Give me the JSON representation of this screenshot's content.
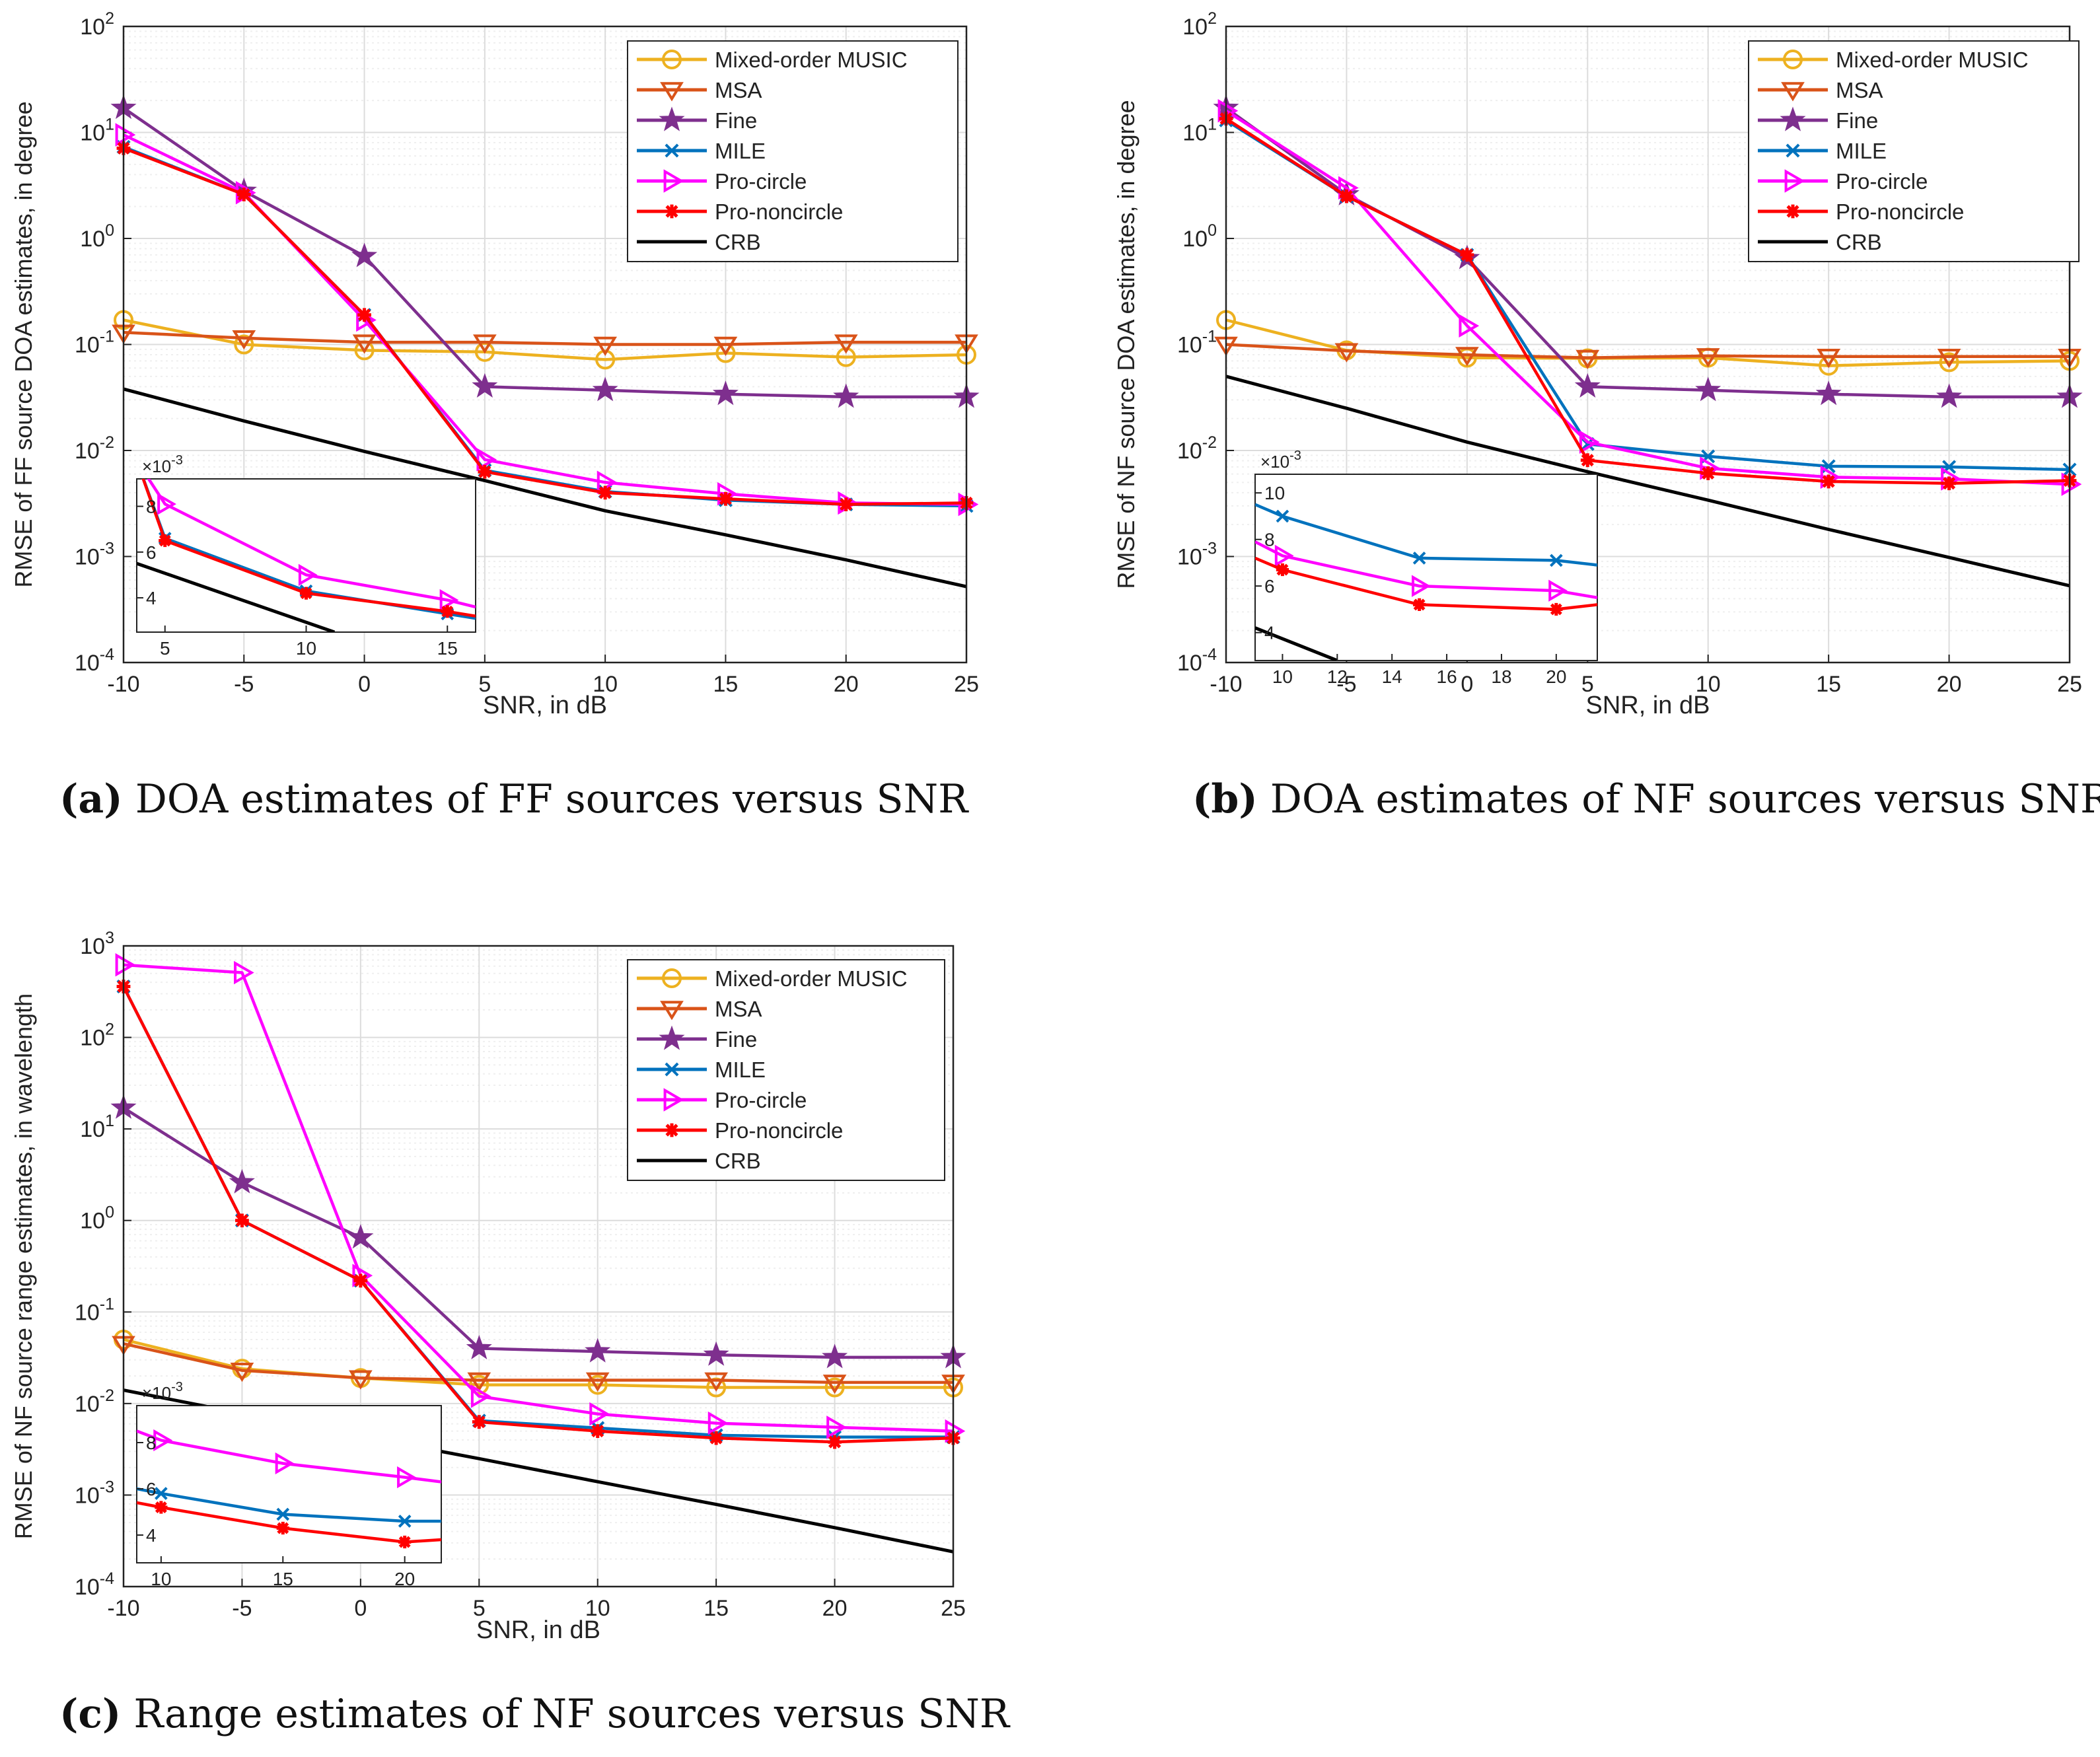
{
  "colors": {
    "mixed": "#EDB120",
    "msa": "#D95319",
    "fine": "#7E2F8E",
    "mile": "#0072BD",
    "procircle": "#FF00FF",
    "pronon": "#FF0000",
    "crb": "#000000",
    "grid": "#dcdcdc",
    "minorgrid": "#efefef"
  },
  "captions": {
    "a": {
      "label": "(a)",
      "text": " DOA estimates of FF sources versus SNR"
    },
    "b": {
      "label": "(b)",
      "text": " DOA estimates of NF sources versus SNR"
    },
    "c": {
      "label": "(c)",
      "text": " Range estimates of NF sources versus SNR"
    }
  },
  "chart_data": [
    {
      "id": "a",
      "type": "line",
      "yscale": "log",
      "xlabel": "SNR, in dB",
      "ylabel": "RMSE of FF source DOA estimates, in degree",
      "xlim": [
        -10,
        25
      ],
      "ylim_exp": [
        -4,
        2
      ],
      "xticks": [
        "-10",
        "-5",
        "0",
        "5",
        "10",
        "15",
        "20",
        "25"
      ],
      "x": [
        -10,
        -5,
        0,
        5,
        10,
        15,
        20,
        25
      ],
      "series": [
        {
          "key": "mixed",
          "name": "Mixed-order MUSIC",
          "marker": "circle",
          "values": [
            0.17,
            0.1,
            0.088,
            0.085,
            0.072,
            0.083,
            0.076,
            0.08
          ]
        },
        {
          "key": "msa",
          "name": "MSA",
          "marker": "tridown",
          "values": [
            0.13,
            0.115,
            0.105,
            0.105,
            0.1,
            0.1,
            0.105,
            0.105
          ]
        },
        {
          "key": "fine",
          "name": "Fine",
          "marker": "star",
          "values": [
            17,
            2.8,
            0.68,
            0.04,
            0.037,
            0.034,
            0.032,
            0.032
          ]
        },
        {
          "key": "mile",
          "name": "MILE",
          "marker": "x",
          "values": [
            7.3,
            2.6,
            0.19,
            0.0065,
            0.0041,
            0.0034,
            0.0031,
            0.003
          ]
        },
        {
          "key": "procircle",
          "name": "Pro-circle",
          "marker": "triright",
          "values": [
            9.5,
            2.7,
            0.17,
            0.0082,
            0.005,
            0.0039,
            0.0032,
            0.0031
          ]
        },
        {
          "key": "pronon",
          "name": "Pro-noncircle",
          "marker": "asterisk",
          "values": [
            7.1,
            2.6,
            0.19,
            0.0063,
            0.004,
            0.0035,
            0.0031,
            0.0032
          ]
        },
        {
          "key": "crb",
          "name": "CRB",
          "marker": "none",
          "values": [
            0.038,
            0.019,
            0.0098,
            0.0052,
            0.0027,
            0.0016,
            0.00093,
            0.00052
          ]
        }
      ],
      "inset": {
        "exponent_label": "×10",
        "exponent_sup": "-3",
        "xlim": [
          4,
          16
        ],
        "ylim": [
          2.5,
          9.2
        ],
        "xticks": [
          "5",
          "10",
          "15"
        ],
        "xtick_values": [
          5,
          10,
          15
        ],
        "yticks": [
          "4",
          "6",
          "8"
        ],
        "ytick_values": [
          4,
          6,
          8
        ],
        "series": [
          {
            "key": "crb",
            "x": [
              4,
              11
            ],
            "values": [
              5.5,
              2.5
            ]
          },
          {
            "key": "mile",
            "x": [
              4,
              5,
              10,
              15,
              16
            ],
            "values": [
              10,
              6.6,
              4.3,
              3.3,
              3.1
            ],
            "marker": "x"
          },
          {
            "key": "procircle",
            "x": [
              4,
              5,
              10,
              15,
              16
            ],
            "values": [
              10,
              8.1,
              5.0,
              3.9,
              3.6
            ],
            "marker": "triright"
          },
          {
            "key": "pronon",
            "x": [
              4,
              5,
              10,
              15,
              16
            ],
            "values": [
              10,
              6.5,
              4.2,
              3.4,
              3.2
            ],
            "marker": "asterisk"
          }
        ]
      }
    },
    {
      "id": "b",
      "type": "line",
      "yscale": "log",
      "xlabel": "SNR, in dB",
      "ylabel": "RMSE of NF source DOA estimates, in degree",
      "xlim": [
        -10,
        25
      ],
      "ylim_exp": [
        -4,
        2
      ],
      "xticks": [
        "-10",
        "-5",
        "0",
        "5",
        "10",
        "15",
        "20",
        "25"
      ],
      "x": [
        -10,
        -5,
        0,
        5,
        10,
        15,
        20,
        25
      ],
      "series": [
        {
          "key": "mixed",
          "name": "Mixed-order MUSIC",
          "marker": "circle",
          "values": [
            0.17,
            0.088,
            0.075,
            0.074,
            0.075,
            0.063,
            0.068,
            0.07
          ]
        },
        {
          "key": "msa",
          "name": "MSA",
          "marker": "tridown",
          "values": [
            0.1,
            0.087,
            0.08,
            0.075,
            0.078,
            0.077,
            0.077,
            0.077
          ]
        },
        {
          "key": "fine",
          "name": "Fine",
          "marker": "star",
          "values": [
            17,
            2.6,
            0.65,
            0.04,
            0.037,
            0.034,
            0.032,
            0.032
          ]
        },
        {
          "key": "mile",
          "name": "MILE",
          "marker": "x",
          "values": [
            13,
            2.5,
            0.7,
            0.0115,
            0.0088,
            0.0071,
            0.007,
            0.0066
          ]
        },
        {
          "key": "procircle",
          "name": "Pro-circle",
          "marker": "triright",
          "values": [
            16,
            3.0,
            0.15,
            0.012,
            0.0068,
            0.0056,
            0.0054,
            0.0048
          ]
        },
        {
          "key": "pronon",
          "name": "Pro-noncircle",
          "marker": "asterisk",
          "values": [
            13.5,
            2.5,
            0.7,
            0.0081,
            0.0061,
            0.0051,
            0.0049,
            0.0052
          ]
        },
        {
          "key": "crb",
          "name": "CRB",
          "marker": "none",
          "values": [
            0.05,
            0.025,
            0.012,
            0.0063,
            0.0034,
            0.0018,
            0.00098,
            0.00053
          ]
        }
      ],
      "inset": {
        "exponent_label": "×10",
        "exponent_sup": "-3",
        "xlim": [
          9,
          21.5
        ],
        "ylim": [
          2.8,
          10.8
        ],
        "xticks": [
          "10",
          "12",
          "14",
          "16",
          "18",
          "20"
        ],
        "xtick_values": [
          10,
          12,
          14,
          16,
          18,
          20
        ],
        "yticks": [
          "4",
          "6",
          "8",
          "10"
        ],
        "ytick_values": [
          4,
          6,
          8,
          10
        ],
        "series": [
          {
            "key": "crb",
            "x": [
              9,
              12
            ],
            "values": [
              4.2,
              2.8
            ]
          },
          {
            "key": "mile",
            "x": [
              9,
              10,
              15,
              20,
              21.5
            ],
            "values": [
              9.5,
              9.0,
              7.2,
              7.1,
              6.9
            ],
            "marker": "x"
          },
          {
            "key": "procircle",
            "x": [
              9,
              10,
              15,
              20,
              21.5
            ],
            "values": [
              7.9,
              7.3,
              6.0,
              5.8,
              5.5
            ],
            "marker": "triright"
          },
          {
            "key": "pronon",
            "x": [
              9,
              10,
              15,
              20,
              21.5
            ],
            "values": [
              7.2,
              6.7,
              5.2,
              5.0,
              5.2
            ],
            "marker": "asterisk"
          }
        ]
      }
    },
    {
      "id": "c",
      "type": "line",
      "yscale": "log",
      "xlabel": "SNR, in dB",
      "ylabel": "RMSE of NF source range estimates, in wavelength",
      "xlim": [
        -10,
        25
      ],
      "ylim_exp": [
        -4,
        3
      ],
      "xticks": [
        "-10",
        "-5",
        "0",
        "5",
        "10",
        "15",
        "20",
        "25"
      ],
      "x": [
        -10,
        -5,
        0,
        5,
        10,
        15,
        20,
        25
      ],
      "series": [
        {
          "key": "mixed",
          "name": "Mixed-order MUSIC",
          "marker": "circle",
          "values": [
            0.05,
            0.024,
            0.019,
            0.016,
            0.016,
            0.015,
            0.015,
            0.015
          ]
        },
        {
          "key": "msa",
          "name": "MSA",
          "marker": "tridown",
          "values": [
            0.045,
            0.023,
            0.019,
            0.018,
            0.018,
            0.018,
            0.017,
            0.017
          ]
        },
        {
          "key": "fine",
          "name": "Fine",
          "marker": "star",
          "values": [
            17,
            2.6,
            0.65,
            0.04,
            0.037,
            0.034,
            0.032,
            0.032
          ]
        },
        {
          "key": "mile",
          "name": "MILE",
          "marker": "x",
          "values": [
            360,
            1.0,
            0.22,
            0.0065,
            0.0054,
            0.0045,
            0.0043,
            0.0043
          ]
        },
        {
          "key": "procircle",
          "name": "Pro-circle",
          "marker": "triright",
          "values": [
            620,
            510,
            0.25,
            0.012,
            0.0077,
            0.0061,
            0.0055,
            0.005
          ]
        },
        {
          "key": "pronon",
          "name": "Pro-noncircle",
          "marker": "asterisk",
          "values": [
            360,
            1.0,
            0.22,
            0.0063,
            0.005,
            0.0042,
            0.0038,
            0.0042
          ]
        },
        {
          "key": "crb",
          "name": "CRB",
          "marker": "none",
          "values": [
            0.014,
            0.0078,
            0.0044,
            0.0025,
            0.0014,
            0.00079,
            0.00044,
            0.00024
          ]
        }
      ],
      "inset": {
        "exponent_label": "×10",
        "exponent_sup": "-3",
        "xlim": [
          9,
          21.5
        ],
        "ylim": [
          2.8,
          9.6
        ],
        "xticks": [
          "10",
          "15",
          "20"
        ],
        "xtick_values": [
          10,
          15,
          20
        ],
        "yticks": [
          "4",
          "6",
          "8"
        ],
        "ytick_values": [
          4,
          6,
          8
        ],
        "series": [
          {
            "key": "procircle",
            "x": [
              9,
              10,
              15,
              20,
              21.5
            ],
            "values": [
              8.5,
              8.1,
              7.1,
              6.5,
              6.3
            ],
            "marker": "triright"
          },
          {
            "key": "mile",
            "x": [
              9,
              10,
              15,
              20,
              21.5
            ],
            "values": [
              6.0,
              5.8,
              4.9,
              4.6,
              4.6
            ],
            "marker": "x"
          },
          {
            "key": "pronon",
            "x": [
              9,
              10,
              15,
              20,
              21.5
            ],
            "values": [
              5.4,
              5.2,
              4.3,
              3.7,
              3.8
            ],
            "marker": "asterisk"
          }
        ]
      }
    }
  ]
}
